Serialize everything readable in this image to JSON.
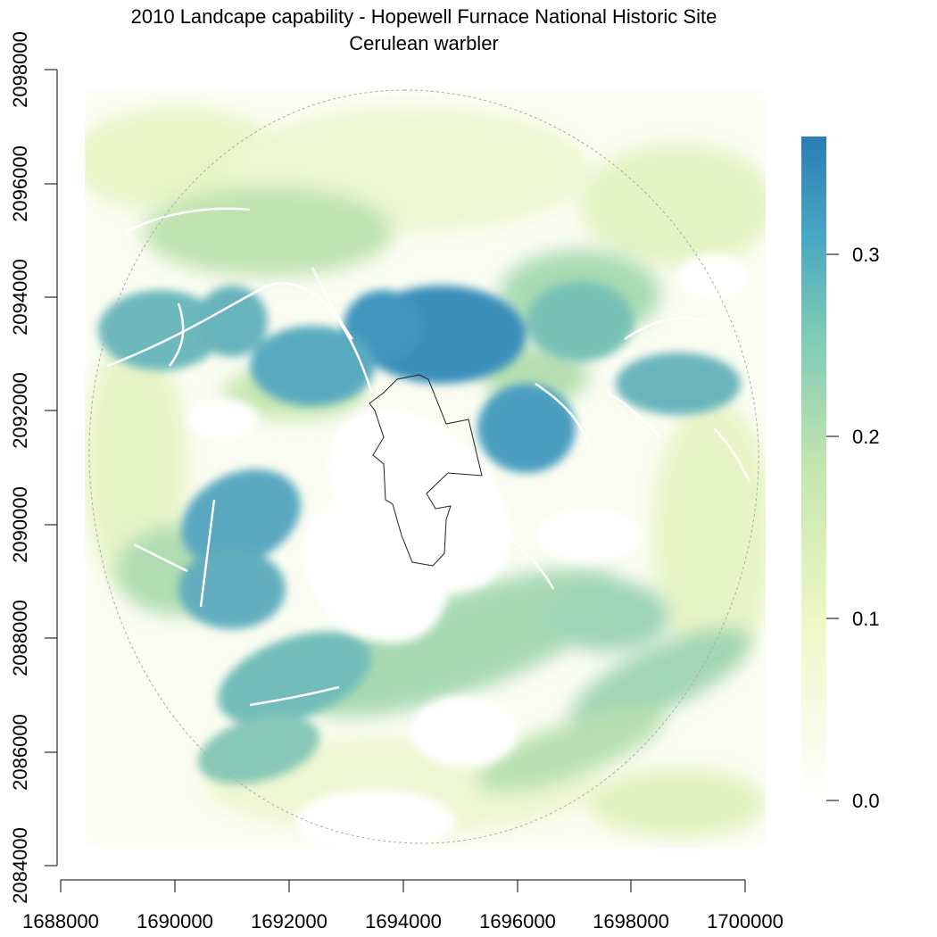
{
  "title": "2010 Landcape capability - Hopewell Furnace National Historic Site",
  "subtitle": "Cerulean warbler",
  "map": {
    "x_ticks": [
      "1688000",
      "1690000",
      "1692000",
      "1694000",
      "1696000",
      "1698000",
      "1700000"
    ],
    "y_ticks": [
      "2084000",
      "2086000",
      "2088000",
      "2090000",
      "2092000",
      "2094000",
      "2096000",
      "2098000"
    ],
    "x_range": [
      1688000,
      1700000
    ],
    "y_range": [
      2084000,
      2098000
    ],
    "layers": [
      "capability raster",
      "park boundary (black line)",
      "study area buffer (dashed grey circle)",
      "roads/streams (white lines)"
    ]
  },
  "legend": {
    "ticks": [
      "0.0",
      "0.1",
      "0.2",
      "0.3"
    ],
    "tick_values": [
      0.0,
      0.1,
      0.2,
      0.3
    ],
    "max": 0.365,
    "colors": [
      "#ffffff",
      "#eef7c6",
      "#c4e6b0",
      "#7fcbb5",
      "#48a7c1",
      "#2c7bb6"
    ]
  }
}
